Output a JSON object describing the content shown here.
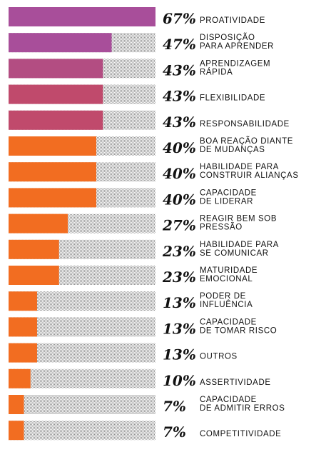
{
  "chart_data": {
    "type": "bar",
    "orientation": "horizontal",
    "unit": "%",
    "xlim": [
      0,
      67
    ],
    "categories": [
      [
        "PROATIVIDADE"
      ],
      [
        "DISPOSIÇÃO",
        "PARA APRENDER"
      ],
      [
        "APRENDIZAGEM",
        "RÁPIDA"
      ],
      [
        "FLEXIBILIDADE"
      ],
      [
        "RESPONSABILIDADE"
      ],
      [
        "BOA REAÇÃO DIANTE",
        "DE MUDANÇAS"
      ],
      [
        "HABILIDADE PARA",
        "CONSTRUIR ALIANÇAS"
      ],
      [
        "CAPACIDADE",
        "DE LIDERAR"
      ],
      [
        "REAGIR BEM SOB",
        "PRESSÃO"
      ],
      [
        "HABILIDADE PARA",
        "SE COMUNICAR"
      ],
      [
        "MATURIDADE",
        "EMOCIONAL"
      ],
      [
        "PODER DE",
        "INFLUÊNCIA"
      ],
      [
        "CAPACIDADE",
        "DE TOMAR RISCO"
      ],
      [
        "OUTROS"
      ],
      [
        "ASSERTIVIDADE"
      ],
      [
        "CAPACIDADE",
        "DE ADMITIR ERROS"
      ],
      [
        "COMPETITIVIDADE"
      ]
    ],
    "values": [
      67,
      47,
      43,
      43,
      43,
      40,
      40,
      40,
      27,
      23,
      23,
      13,
      13,
      13,
      10,
      7,
      7
    ],
    "value_labels": [
      "67%",
      "47%",
      "43%",
      "43%",
      "43%",
      "40%",
      "40%",
      "40%",
      "27%",
      "23%",
      "23%",
      "13%",
      "13%",
      "13%",
      "10%",
      "7%",
      "7%"
    ],
    "colors": [
      "#a84e9a",
      "#a84e9a",
      "#b34d82",
      "#c04a6c",
      "#c04a6c",
      "#f26d21",
      "#f26d21",
      "#f26d21",
      "#f26d21",
      "#f26d21",
      "#f26d21",
      "#f26d21",
      "#f26d21",
      "#f26d21",
      "#f26d21",
      "#f26d21",
      "#f26d21"
    ],
    "background_pattern": "dotted grey track"
  }
}
